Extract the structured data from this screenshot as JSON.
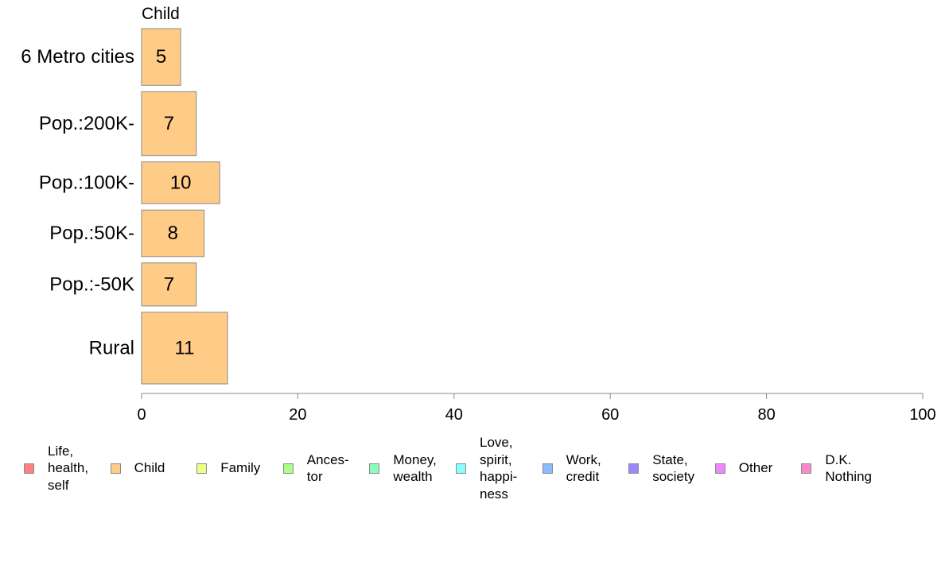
{
  "chart_data": {
    "type": "bar",
    "orientation": "horizontal",
    "stacked": true,
    "panel_title": "Child",
    "categories": [
      "6 Metro cities",
      "Pop.:200K-",
      "Pop.:100K-",
      "Pop.:50K-",
      "Pop.:-50K",
      "Rural"
    ],
    "bar_weights": [
      0.95,
      1.07,
      0.7,
      0.78,
      0.72,
      1.2
    ],
    "series": [
      {
        "name": "Child",
        "values": [
          5,
          7,
          10,
          8,
          7,
          11
        ],
        "color": "#FFCC88"
      }
    ],
    "xlim": [
      0,
      100
    ],
    "xticks": [
      0,
      20,
      40,
      60,
      80,
      100
    ],
    "grid": false,
    "legend_position": "bottom",
    "bar_border_color": "#8A8A8A"
  },
  "legend": [
    {
      "label": "Life,\nhealth,\nself",
      "color": "#FF8080"
    },
    {
      "label": "Child",
      "color": "#FFCC88"
    },
    {
      "label": "Family",
      "color": "#EEFF88"
    },
    {
      "label": "Ances-\ntor",
      "color": "#AAFF88"
    },
    {
      "label": "Money,\nwealth",
      "color": "#88FFBB"
    },
    {
      "label": "Love,\nspirit,\nhappi-\nness",
      "color": "#88FFFF"
    },
    {
      "label": "Work,\ncredit",
      "color": "#88BBFF"
    },
    {
      "label": "State,\nsociety",
      "color": "#9988FF"
    },
    {
      "label": "Other",
      "color": "#EE88FF"
    },
    {
      "label": "D.K.\nNothing",
      "color": "#FF88CC"
    }
  ]
}
